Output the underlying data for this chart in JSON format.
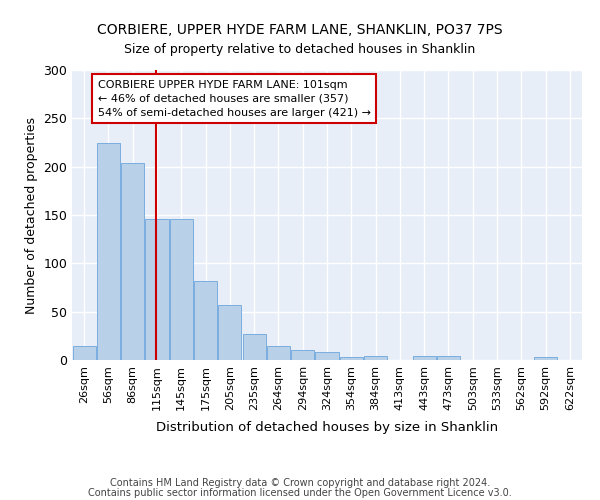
{
  "title1": "CORBIERE, UPPER HYDE FARM LANE, SHANKLIN, PO37 7PS",
  "title2": "Size of property relative to detached houses in Shanklin",
  "xlabel": "Distribution of detached houses by size in Shanklin",
  "ylabel": "Number of detached properties",
  "bar_labels": [
    "26sqm",
    "56sqm",
    "86sqm",
    "115sqm",
    "145sqm",
    "175sqm",
    "205sqm",
    "235sqm",
    "264sqm",
    "294sqm",
    "324sqm",
    "354sqm",
    "384sqm",
    "413sqm",
    "443sqm",
    "473sqm",
    "503sqm",
    "533sqm",
    "562sqm",
    "592sqm",
    "622sqm"
  ],
  "bar_values": [
    15,
    224,
    204,
    146,
    146,
    82,
    57,
    27,
    14,
    10,
    8,
    3,
    4,
    0,
    4,
    4,
    0,
    0,
    0,
    3,
    0
  ],
  "bar_color": "#b8d0e8",
  "bar_edge_color": "#7aade0",
  "red_line_x": 2.97,
  "annotation_text1": "CORBIERE UPPER HYDE FARM LANE: 101sqm",
  "annotation_text2": "← 46% of detached houses are smaller (357)",
  "annotation_text3": "54% of semi-detached houses are larger (421) →",
  "annotation_box_color": "#ffffff",
  "annotation_edge_color": "#cc0000",
  "red_line_color": "#cc0000",
  "ylim": [
    0,
    300
  ],
  "yticks": [
    0,
    50,
    100,
    150,
    200,
    250,
    300
  ],
  "footer_text1": "Contains HM Land Registry data © Crown copyright and database right 2024.",
  "footer_text2": "Contains public sector information licensed under the Open Government Licence v3.0.",
  "bg_color": "#e8eef8",
  "grid_color": "#ffffff",
  "fig_bg": "#ffffff"
}
